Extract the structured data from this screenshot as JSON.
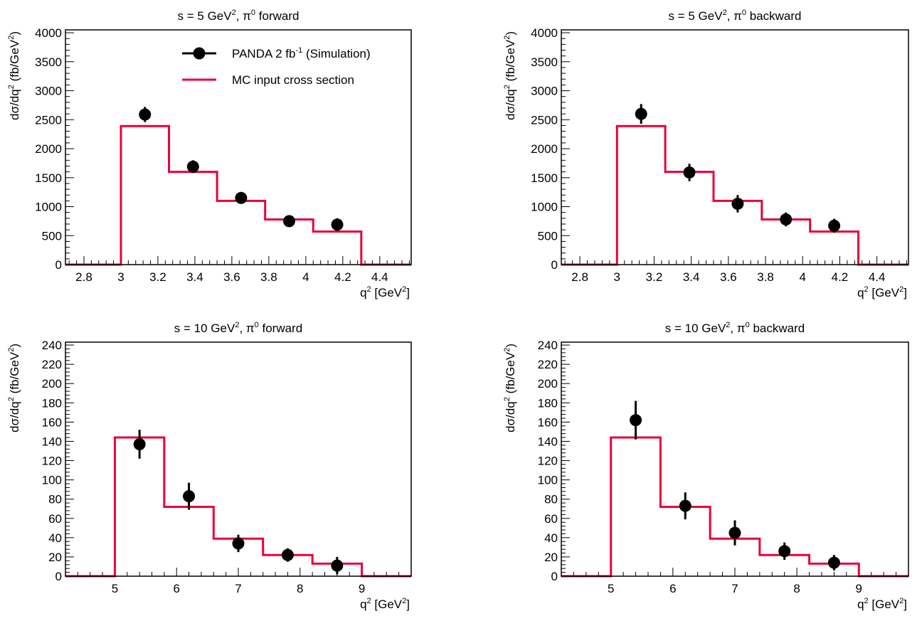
{
  "chart_data": [
    {
      "type": "histogram",
      "title": {
        "pre": "s = 5 GeV",
        "sup1": "2",
        "mid": ", π",
        "sup2": "0",
        "post": " forward"
      },
      "xlabel": {
        "pre": "q",
        "sup1": "2",
        "mid": " [GeV",
        "sup2": "2",
        "post": "]"
      },
      "ylabel": {
        "pre": "dσ/dq",
        "sup1": "2",
        "mid": " (fb/GeV",
        "sup2": "2",
        "post": ")"
      },
      "xlim": [
        2.7,
        4.57
      ],
      "ylim": [
        0,
        4050
      ],
      "xticks": [
        2.8,
        3,
        3.2,
        3.4,
        3.6,
        3.8,
        4,
        4.2,
        4.4
      ],
      "xtick_labels": [
        "2.8",
        "3",
        "3.2",
        "3.4",
        "3.6",
        "3.8",
        "4",
        "4.2",
        "4.4"
      ],
      "yticks": [
        0,
        500,
        1000,
        1500,
        2000,
        2500,
        3000,
        3500,
        4000
      ],
      "ytick_labels": [
        "0",
        "500",
        "1000",
        "1500",
        "2000",
        "2500",
        "3000",
        "3500",
        "4000"
      ],
      "mc_input": {
        "name": "MC input cross section",
        "color": "#e8003c",
        "bin_edges": [
          3.0,
          3.26,
          3.52,
          3.78,
          4.04,
          4.3
        ],
        "values": [
          2390,
          1600,
          1100,
          780,
          570
        ]
      },
      "simulation": {
        "name": "PANDA 2 fb-1 (Simulation)",
        "x": [
          3.13,
          3.39,
          3.65,
          3.91,
          4.17
        ],
        "y": [
          2590,
          1690,
          1150,
          750,
          690
        ],
        "err": [
          130,
          110,
          100,
          100,
          110
        ]
      },
      "legend": {
        "placement": "top-right",
        "entries": [
          {
            "pre": "PANDA 2 fb",
            "sup": "-1",
            "post": " (Simulation)"
          },
          {
            "pre": "MC input cross section",
            "sup": "",
            "post": ""
          }
        ]
      }
    },
    {
      "type": "histogram",
      "title": {
        "pre": "s = 5 GeV",
        "sup1": "2",
        "mid": ", π",
        "sup2": "0",
        "post": " backward"
      },
      "xlabel": {
        "pre": "q",
        "sup1": "2",
        "mid": " [GeV",
        "sup2": "2",
        "post": "]"
      },
      "ylabel": {
        "pre": "dσ/dq",
        "sup1": "2",
        "mid": " (fb/GeV",
        "sup2": "2",
        "post": ")"
      },
      "xlim": [
        2.7,
        4.57
      ],
      "ylim": [
        0,
        4050
      ],
      "xticks": [
        2.8,
        3,
        3.2,
        3.4,
        3.6,
        3.8,
        4,
        4.2,
        4.4
      ],
      "xtick_labels": [
        "2.8",
        "3",
        "3.2",
        "3.4",
        "3.6",
        "3.8",
        "4",
        "4.2",
        "4.4"
      ],
      "yticks": [
        0,
        500,
        1000,
        1500,
        2000,
        2500,
        3000,
        3500,
        4000
      ],
      "ytick_labels": [
        "0",
        "500",
        "1000",
        "1500",
        "2000",
        "2500",
        "3000",
        "3500",
        "4000"
      ],
      "mc_input": {
        "name": "MC input cross section",
        "color": "#e8003c",
        "bin_edges": [
          3.0,
          3.26,
          3.52,
          3.78,
          4.04,
          4.3
        ],
        "values": [
          2390,
          1600,
          1100,
          780,
          570
        ]
      },
      "simulation": {
        "name": "PANDA 2 fb-1 (Simulation)",
        "x": [
          3.13,
          3.39,
          3.65,
          3.91,
          4.17
        ],
        "y": [
          2600,
          1590,
          1050,
          780,
          670
        ],
        "err": [
          170,
          150,
          150,
          120,
          120
        ]
      },
      "legend": null
    },
    {
      "type": "histogram",
      "title": {
        "pre": "s = 10 GeV",
        "sup1": "2",
        "mid": ", π",
        "sup2": "0",
        "post": " forward"
      },
      "xlabel": {
        "pre": "q",
        "sup1": "2",
        "mid": " [GeV",
        "sup2": "2",
        "post": "]"
      },
      "ylabel": {
        "pre": "dσ/dq",
        "sup1": "2",
        "mid": " (fb/GeV",
        "sup2": "2",
        "post": ")"
      },
      "xlim": [
        4.2,
        9.8
      ],
      "ylim": [
        0,
        243
      ],
      "xticks": [
        5,
        6,
        7,
        8,
        9
      ],
      "xtick_labels": [
        "5",
        "6",
        "7",
        "8",
        "9"
      ],
      "yticks": [
        0,
        20,
        40,
        60,
        80,
        100,
        120,
        140,
        160,
        180,
        200,
        220,
        240
      ],
      "ytick_labels": [
        "0",
        "20",
        "40",
        "60",
        "80",
        "100",
        "120",
        "140",
        "160",
        "180",
        "200",
        "220",
        "240"
      ],
      "mc_input": {
        "name": "MC input cross section",
        "color": "#e8003c",
        "bin_edges": [
          5.0,
          5.8,
          6.6,
          7.4,
          8.2,
          9.0
        ],
        "values": [
          144,
          72,
          39,
          22,
          13
        ]
      },
      "simulation": {
        "name": "PANDA 2 fb-1 (Simulation)",
        "x": [
          5.4,
          6.2,
          7.0,
          7.8,
          8.6
        ],
        "y": [
          137,
          83,
          34,
          22,
          11
        ],
        "err": [
          15,
          14,
          9,
          7,
          9
        ]
      },
      "legend": null
    },
    {
      "type": "histogram",
      "title": {
        "pre": "s = 10 GeV",
        "sup1": "2",
        "mid": ", π",
        "sup2": "0",
        "post": " backward"
      },
      "xlabel": {
        "pre": "q",
        "sup1": "2",
        "mid": " [GeV",
        "sup2": "2",
        "post": "]"
      },
      "ylabel": {
        "pre": "dσ/dq",
        "sup1": "2",
        "mid": " (fb/GeV",
        "sup2": "2",
        "post": ")"
      },
      "xlim": [
        4.2,
        9.8
      ],
      "ylim": [
        0,
        243
      ],
      "xticks": [
        5,
        6,
        7,
        8,
        9
      ],
      "xtick_labels": [
        "5",
        "6",
        "7",
        "8",
        "9"
      ],
      "yticks": [
        0,
        20,
        40,
        60,
        80,
        100,
        120,
        140,
        160,
        180,
        200,
        220,
        240
      ],
      "ytick_labels": [
        "0",
        "20",
        "40",
        "60",
        "80",
        "100",
        "120",
        "140",
        "160",
        "180",
        "200",
        "220",
        "240"
      ],
      "mc_input": {
        "name": "MC input cross section",
        "color": "#e8003c",
        "bin_edges": [
          5.0,
          5.8,
          6.6,
          7.4,
          8.2,
          9.0
        ],
        "values": [
          144,
          72,
          39,
          22,
          13
        ]
      },
      "simulation": {
        "name": "PANDA 2 fb-1 (Simulation)",
        "x": [
          5.4,
          6.2,
          7.0,
          7.8,
          8.6
        ],
        "y": [
          162,
          73,
          45,
          26,
          14
        ],
        "err": [
          20,
          14,
          13,
          9,
          8
        ]
      },
      "legend": null
    }
  ]
}
